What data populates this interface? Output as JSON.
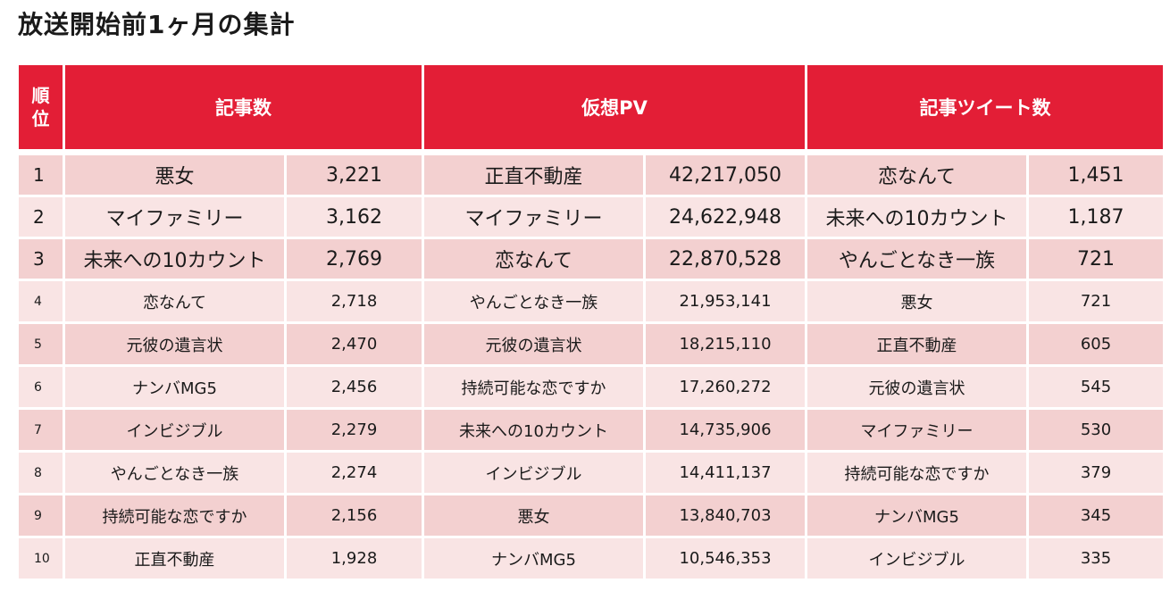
{
  "title": "放送開始前1ヶ月の集計",
  "headers": {
    "rank_line1": "順",
    "rank_line2": "位",
    "col1": "記事数",
    "col2": "仮想PV",
    "col3": "記事ツイート数"
  },
  "rows": [
    {
      "rank": "1",
      "a_name": "悪女",
      "a_val": "3,221",
      "b_name": "正直不動産",
      "b_val": "42,217,050",
      "c_name": "恋なんて",
      "c_val": "1,451"
    },
    {
      "rank": "2",
      "a_name": "マイファミリー",
      "a_val": "3,162",
      "b_name": "マイファミリー",
      "b_val": "24,622,948",
      "c_name": "未来への10カウント",
      "c_val": "1,187"
    },
    {
      "rank": "3",
      "a_name": "未来への10カウント",
      "a_val": "2,769",
      "b_name": "恋なんて",
      "b_val": "22,870,528",
      "c_name": "やんごとなき一族",
      "c_val": "721"
    },
    {
      "rank": "4",
      "a_name": "恋なんて",
      "a_val": "2,718",
      "b_name": "やんごとなき一族",
      "b_val": "21,953,141",
      "c_name": "悪女",
      "c_val": "721"
    },
    {
      "rank": "5",
      "a_name": "元彼の遺言状",
      "a_val": "2,470",
      "b_name": "元彼の遺言状",
      "b_val": "18,215,110",
      "c_name": "正直不動産",
      "c_val": "605"
    },
    {
      "rank": "6",
      "a_name": "ナンバMG5",
      "a_val": "2,456",
      "b_name": "持続可能な恋ですか",
      "b_val": "17,260,272",
      "c_name": "元彼の遺言状",
      "c_val": "545"
    },
    {
      "rank": "7",
      "a_name": "インビジブル",
      "a_val": "2,279",
      "b_name": "未来への10カウント",
      "b_val": "14,735,906",
      "c_name": "マイファミリー",
      "c_val": "530"
    },
    {
      "rank": "8",
      "a_name": "やんごとなき一族",
      "a_val": "2,274",
      "b_name": "インビジブル",
      "b_val": "14,411,137",
      "c_name": "持続可能な恋ですか",
      "c_val": "379"
    },
    {
      "rank": "9",
      "a_name": "持続可能な恋ですか",
      "a_val": "2,156",
      "b_name": "悪女",
      "b_val": "13,840,703",
      "c_name": "ナンバMG5",
      "c_val": "345"
    },
    {
      "rank": "10",
      "a_name": "正直不動産",
      "a_val": "1,928",
      "b_name": "ナンバMG5",
      "b_val": "10,546,353",
      "c_name": "インビジブル",
      "c_val": "335"
    }
  ]
}
